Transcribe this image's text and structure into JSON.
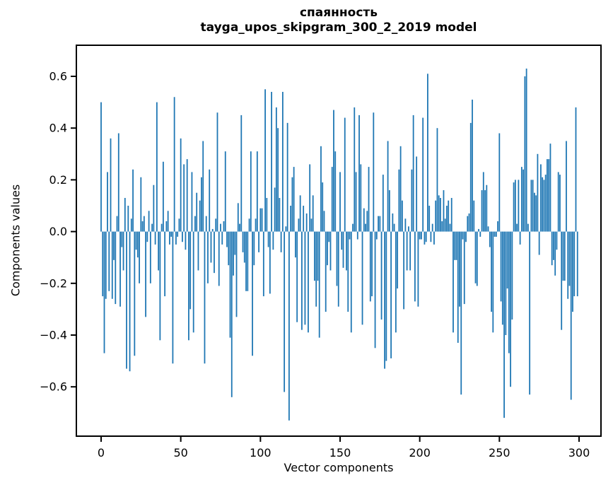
{
  "figure": {
    "title_line1": "спаянность",
    "title_line2": "tayga_upos_skipgram_300_2_2019 model",
    "xlabel": "Vector components",
    "ylabel": "Components values"
  },
  "chart_data": {
    "type": "bar",
    "title": "спаянность",
    "subtitle": "tayga_upos_skipgram_300_2_2019 model",
    "xlabel": "Vector components",
    "ylabel": "Components values",
    "x_start_index": 0,
    "n_bars": 300,
    "bar_color": "#1f77b4",
    "axis_color": "#000000",
    "background_color": "#ffffff",
    "grid": false,
    "legend": false,
    "xlim": [
      -15.5,
      313.8
    ],
    "ylim": [
      -0.79,
      0.72
    ],
    "xticks": [
      {
        "v": 0,
        "label": "0"
      },
      {
        "v": 50,
        "label": "50"
      },
      {
        "v": 100,
        "label": "100"
      },
      {
        "v": 150,
        "label": "150"
      },
      {
        "v": 200,
        "label": "200"
      },
      {
        "v": 250,
        "label": "250"
      },
      {
        "v": 300,
        "label": "300"
      }
    ],
    "yticks": [
      {
        "v": 0.6,
        "label": "0.6"
      },
      {
        "v": 0.4,
        "label": "0.4"
      },
      {
        "v": 0.2,
        "label": "0.2"
      },
      {
        "v": 0.0,
        "label": "0.0"
      },
      {
        "v": -0.2,
        "label": "−0.2"
      },
      {
        "v": -0.4,
        "label": "−0.4"
      },
      {
        "v": -0.6,
        "label": "−0.6"
      }
    ],
    "values": [
      0.5,
      -0.25,
      -0.47,
      -0.26,
      0.23,
      -0.23,
      0.36,
      -0.26,
      -0.11,
      -0.28,
      0.06,
      0.38,
      -0.29,
      -0.06,
      -0.15,
      0.13,
      -0.53,
      0.1,
      -0.54,
      0.05,
      0.24,
      -0.48,
      -0.07,
      -0.1,
      -0.2,
      0.21,
      0.04,
      0.06,
      -0.33,
      -0.04,
      0.08,
      -0.2,
      0.03,
      0.18,
      -0.05,
      0.5,
      -0.15,
      -0.42,
      0.03,
      0.27,
      -0.25,
      0.04,
      0.08,
      -0.05,
      -0.02,
      -0.51,
      0.52,
      -0.05,
      -0.02,
      0.05,
      0.36,
      -0.04,
      0.26,
      -0.07,
      0.28,
      -0.42,
      -0.3,
      0.23,
      -0.39,
      0.06,
      0.15,
      -0.15,
      0.12,
      0.21,
      0.35,
      -0.51,
      0.06,
      -0.2,
      0.24,
      -0.12,
      0.01,
      -0.16,
      0.05,
      0.46,
      -0.21,
      0.03,
      -0.05,
      0.04,
      0.31,
      -0.06,
      -0.13,
      -0.41,
      -0.64,
      -0.17,
      -0.09,
      -0.33,
      0.11,
      0.03,
      0.45,
      -0.08,
      -0.12,
      -0.23,
      -0.23,
      0.05,
      0.31,
      -0.48,
      -0.13,
      0.05,
      0.31,
      -0.08,
      0.09,
      0.09,
      -0.25,
      0.55,
      0.13,
      -0.06,
      -0.24,
      0.54,
      -0.07,
      0.17,
      0.48,
      0.4,
      0.13,
      -0.08,
      0.54,
      -0.62,
      0.02,
      0.42,
      -0.73,
      0.1,
      0.21,
      0.25,
      -0.1,
      -0.35,
      0.05,
      0.14,
      -0.38,
      0.1,
      -0.36,
      0.07,
      -0.39,
      0.26,
      0.05,
      0.14,
      -0.19,
      -0.29,
      -0.19,
      -0.41,
      0.33,
      0.19,
      0.08,
      -0.31,
      -0.13,
      -0.04,
      -0.15,
      0.25,
      0.47,
      0.31,
      -0.21,
      -0.29,
      0.23,
      -0.07,
      -0.14,
      0.44,
      -0.15,
      -0.31,
      -0.03,
      -0.39,
      0.03,
      0.48,
      0.23,
      -0.03,
      0.45,
      0.26,
      -0.36,
      0.09,
      0.03,
      0.08,
      0.25,
      -0.27,
      -0.25,
      0.46,
      -0.45,
      -0.03,
      0.06,
      0.06,
      -0.34,
      0.22,
      -0.53,
      -0.5,
      0.35,
      0.16,
      -0.49,
      0.07,
      0.03,
      -0.39,
      -0.22,
      0.24,
      0.33,
      0.12,
      -0.3,
      0.05,
      -0.15,
      0.02,
      -0.15,
      0.24,
      0.45,
      -0.27,
      0.29,
      -0.29,
      -0.03,
      -0.03,
      0.44,
      -0.05,
      -0.04,
      0.61,
      0.1,
      -0.04,
      0.03,
      -0.05,
      0.12,
      0.4,
      0.14,
      0.13,
      0.04,
      0.16,
      0.05,
      0.1,
      0.12,
      0.03,
      0.13,
      -0.39,
      -0.11,
      -0.11,
      -0.43,
      -0.29,
      -0.63,
      -0.03,
      -0.28,
      -0.04,
      0.06,
      0.07,
      0.42,
      0.51,
      0.12,
      -0.2,
      -0.21,
      0.01,
      -0.02,
      0.16,
      0.23,
      0.16,
      0.18,
      0.02,
      -0.06,
      -0.31,
      -0.39,
      -0.02,
      -0.02,
      0.04,
      0.38,
      -0.27,
      -0.36,
      -0.72,
      -0.4,
      -0.22,
      -0.47,
      -0.6,
      -0.34,
      0.19,
      0.2,
      0.03,
      0.2,
      -0.05,
      0.25,
      0.24,
      0.6,
      0.63,
      0.03,
      -0.63,
      0.2,
      0.2,
      0.15,
      0.14,
      0.3,
      -0.09,
      0.26,
      0.21,
      0.2,
      0.22,
      0.28,
      0.28,
      0.34,
      -0.13,
      -0.11,
      -0.17,
      -0.07,
      0.23,
      0.22,
      -0.38,
      -0.19,
      -0.19,
      0.35,
      -0.26,
      -0.21,
      -0.65,
      -0.31,
      -0.25,
      0.48,
      -0.25
    ]
  }
}
